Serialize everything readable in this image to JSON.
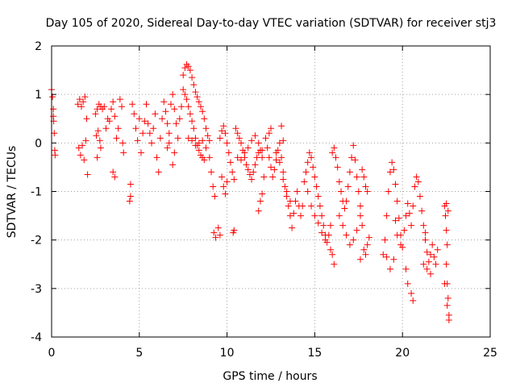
{
  "chart_data": {
    "type": "scatter",
    "title": "Day 105 of 2020, Sidereal Day-to-day VTEC variation (SDTVAR) for receiver stj3",
    "xlabel": "GPS time / hours",
    "ylabel": "SDTVAR / TECUs",
    "xlim": [
      0,
      25
    ],
    "ylim": [
      -4,
      2
    ],
    "xticks": [
      0,
      5,
      10,
      15,
      20,
      25
    ],
    "yticks": [
      -4,
      -3,
      -2,
      -1,
      0,
      1,
      2
    ],
    "grid": true,
    "marker": "+",
    "series": [
      {
        "name": "SDTVAR",
        "color": "#ff0000",
        "points": [
          [
            0.0,
            1.1
          ],
          [
            0.05,
            0.95
          ],
          [
            0.1,
            0.7
          ],
          [
            0.12,
            0.45
          ],
          [
            0.15,
            0.2
          ],
          [
            0.18,
            -0.15
          ],
          [
            0.2,
            -0.25
          ],
          [
            0.1,
            0.55
          ],
          [
            1.5,
            0.8
          ],
          [
            1.6,
            0.9
          ],
          [
            1.7,
            0.75
          ],
          [
            1.8,
            0.85
          ],
          [
            1.9,
            0.95
          ],
          [
            1.55,
            -0.1
          ],
          [
            1.65,
            -0.25
          ],
          [
            1.75,
            -0.05
          ],
          [
            1.85,
            -0.35
          ],
          [
            1.95,
            0.05
          ],
          [
            2.0,
            0.5
          ],
          [
            2.05,
            -0.65
          ],
          [
            2.5,
            0.6
          ],
          [
            2.6,
            0.7
          ],
          [
            2.7,
            0.8
          ],
          [
            2.8,
            0.75
          ],
          [
            2.9,
            0.7
          ],
          [
            2.55,
            0.15
          ],
          [
            2.65,
            0.25
          ],
          [
            2.75,
            0.05
          ],
          [
            2.6,
            -0.3
          ],
          [
            2.8,
            -0.1
          ],
          [
            3.0,
            0.75
          ],
          [
            3.1,
            0.3
          ],
          [
            3.2,
            0.5
          ],
          [
            3.3,
            0.45
          ],
          [
            3.4,
            0.7
          ],
          [
            3.5,
            0.85
          ],
          [
            3.6,
            0.55
          ],
          [
            3.7,
            0.1
          ],
          [
            3.8,
            0.3
          ],
          [
            3.9,
            0.9
          ],
          [
            4.0,
            0.75
          ],
          [
            4.05,
            0.0
          ],
          [
            4.1,
            -0.2
          ],
          [
            3.5,
            -0.6
          ],
          [
            3.6,
            -0.7
          ],
          [
            4.5,
            -1.1
          ],
          [
            4.45,
            -1.2
          ],
          [
            4.5,
            -0.85
          ],
          [
            4.6,
            0.8
          ],
          [
            4.7,
            0.6
          ],
          [
            4.8,
            0.3
          ],
          [
            4.9,
            0.05
          ],
          [
            5.0,
            0.5
          ],
          [
            5.1,
            -0.2
          ],
          [
            5.2,
            0.2
          ],
          [
            5.3,
            0.45
          ],
          [
            5.4,
            0.8
          ],
          [
            5.5,
            0.4
          ],
          [
            5.6,
            0.2
          ],
          [
            5.7,
            0.0
          ],
          [
            5.8,
            0.3
          ],
          [
            5.9,
            0.6
          ],
          [
            6.0,
            -0.3
          ],
          [
            6.1,
            -0.6
          ],
          [
            6.2,
            0.1
          ],
          [
            6.3,
            0.5
          ],
          [
            6.4,
            0.85
          ],
          [
            6.5,
            0.65
          ],
          [
            6.6,
            0.4
          ],
          [
            6.7,
            0.2
          ],
          [
            6.8,
            0.8
          ],
          [
            6.9,
            1.0
          ],
          [
            7.0,
            0.7
          ],
          [
            7.1,
            0.4
          ],
          [
            7.2,
            0.1
          ],
          [
            7.3,
            0.5
          ],
          [
            7.4,
            0.75
          ],
          [
            6.9,
            -0.45
          ],
          [
            7.0,
            -0.2
          ],
          [
            6.6,
            -0.1
          ],
          [
            6.7,
            0.0
          ],
          [
            7.5,
            1.4
          ],
          [
            7.6,
            1.55
          ],
          [
            7.7,
            1.62
          ],
          [
            7.8,
            1.58
          ],
          [
            7.9,
            1.5
          ],
          [
            8.0,
            1.35
          ],
          [
            8.1,
            1.2
          ],
          [
            8.2,
            1.05
          ],
          [
            8.3,
            0.95
          ],
          [
            8.4,
            0.85
          ],
          [
            8.5,
            0.75
          ],
          [
            8.6,
            0.65
          ],
          [
            8.7,
            0.5
          ],
          [
            8.8,
            0.3
          ],
          [
            8.9,
            0.15
          ],
          [
            9.0,
            0.05
          ],
          [
            7.5,
            1.1
          ],
          [
            7.6,
            1.0
          ],
          [
            7.7,
            0.9
          ],
          [
            7.8,
            0.75
          ],
          [
            7.9,
            0.6
          ],
          [
            8.0,
            0.45
          ],
          [
            8.1,
            0.3
          ],
          [
            8.2,
            0.1
          ],
          [
            8.3,
            -0.05
          ],
          [
            8.4,
            -0.15
          ],
          [
            8.5,
            -0.25
          ],
          [
            8.6,
            -0.3
          ],
          [
            8.7,
            -0.35
          ],
          [
            7.8,
            0.1
          ],
          [
            8.0,
            0.05
          ],
          [
            8.2,
            -0.05
          ],
          [
            8.4,
            0.0
          ],
          [
            8.6,
            0.05
          ],
          [
            8.8,
            -0.1
          ],
          [
            9.0,
            -0.3
          ],
          [
            9.1,
            -0.6
          ],
          [
            9.2,
            -0.9
          ],
          [
            9.3,
            -1.1
          ],
          [
            9.25,
            -1.85
          ],
          [
            9.35,
            -1.95
          ],
          [
            9.5,
            -1.75
          ],
          [
            9.6,
            -1.9
          ],
          [
            9.6,
            0.1
          ],
          [
            9.7,
            0.25
          ],
          [
            9.8,
            0.35
          ],
          [
            9.9,
            0.2
          ],
          [
            10.0,
            0.0
          ],
          [
            10.1,
            -0.2
          ],
          [
            10.2,
            -0.4
          ],
          [
            10.3,
            -0.6
          ],
          [
            10.4,
            -0.75
          ],
          [
            9.7,
            -0.7
          ],
          [
            9.8,
            -0.9
          ],
          [
            9.9,
            -1.05
          ],
          [
            10.0,
            -0.8
          ],
          [
            10.35,
            -1.85
          ],
          [
            10.4,
            -1.8
          ],
          [
            10.5,
            0.3
          ],
          [
            10.6,
            0.2
          ],
          [
            10.7,
            0.1
          ],
          [
            10.8,
            0.0
          ],
          [
            10.9,
            -0.15
          ],
          [
            11.0,
            -0.3
          ],
          [
            11.1,
            -0.45
          ],
          [
            11.2,
            -0.55
          ],
          [
            11.3,
            -0.65
          ],
          [
            11.4,
            -0.75
          ],
          [
            11.5,
            -0.6
          ],
          [
            11.6,
            -0.45
          ],
          [
            11.7,
            -0.3
          ],
          [
            11.8,
            -0.2
          ],
          [
            11.9,
            -0.15
          ],
          [
            12.0,
            -0.3
          ],
          [
            12.1,
            -0.7
          ],
          [
            12.0,
            -1.05
          ],
          [
            11.9,
            -1.2
          ],
          [
            11.8,
            -1.4
          ],
          [
            10.6,
            -0.3
          ],
          [
            10.8,
            -0.35
          ],
          [
            11.0,
            -0.2
          ],
          [
            11.2,
            -0.1
          ],
          [
            11.4,
            0.05
          ],
          [
            11.6,
            0.15
          ],
          [
            11.8,
            0.0
          ],
          [
            12.0,
            -0.15
          ],
          [
            12.2,
            0.1
          ],
          [
            12.3,
            -0.1
          ],
          [
            12.4,
            -0.3
          ],
          [
            12.5,
            -0.5
          ],
          [
            12.6,
            -0.7
          ],
          [
            12.7,
            -0.55
          ],
          [
            12.8,
            -0.35
          ],
          [
            12.9,
            -0.15
          ],
          [
            13.0,
            0.0
          ],
          [
            13.1,
            -0.3
          ],
          [
            13.2,
            -0.6
          ],
          [
            13.3,
            -0.9
          ],
          [
            13.4,
            -1.1
          ],
          [
            13.5,
            -1.3
          ],
          [
            13.6,
            -1.5
          ],
          [
            13.7,
            -1.75
          ],
          [
            12.4,
            0.2
          ],
          [
            12.5,
            0.3
          ],
          [
            12.8,
            -0.2
          ],
          [
            13.0,
            -0.4
          ],
          [
            13.2,
            -0.75
          ],
          [
            13.4,
            -1.0
          ],
          [
            13.6,
            -1.2
          ],
          [
            13.8,
            -1.45
          ],
          [
            13.9,
            -1.2
          ],
          [
            14.0,
            -1.0
          ],
          [
            14.1,
            -1.3
          ],
          [
            14.2,
            -1.5
          ],
          [
            14.3,
            -1.3
          ],
          [
            13.1,
            0.35
          ],
          [
            13.2,
            0.05
          ],
          [
            14.4,
            -0.8
          ],
          [
            14.5,
            -0.6
          ],
          [
            14.6,
            -0.4
          ],
          [
            14.7,
            -0.2
          ],
          [
            14.8,
            -0.3
          ],
          [
            14.9,
            -0.5
          ],
          [
            15.0,
            -0.7
          ],
          [
            15.1,
            -0.9
          ],
          [
            15.2,
            -1.1
          ],
          [
            15.3,
            -1.3
          ],
          [
            15.4,
            -1.5
          ],
          [
            15.5,
            -1.7
          ],
          [
            15.6,
            -1.9
          ],
          [
            15.7,
            -2.05
          ],
          [
            15.8,
            -1.9
          ],
          [
            15.9,
            -1.7
          ],
          [
            14.6,
            -1.0
          ],
          [
            14.8,
            -1.3
          ],
          [
            15.0,
            -1.5
          ],
          [
            15.2,
            -1.65
          ],
          [
            15.4,
            -1.85
          ],
          [
            15.6,
            -2.0
          ],
          [
            15.9,
            -2.2
          ],
          [
            16.0,
            -2.3
          ],
          [
            16.1,
            -2.5
          ],
          [
            16.0,
            -0.2
          ],
          [
            16.1,
            -0.1
          ],
          [
            16.2,
            -0.3
          ],
          [
            16.3,
            -0.5
          ],
          [
            16.4,
            -0.8
          ],
          [
            16.5,
            -1.0
          ],
          [
            16.6,
            -1.2
          ],
          [
            16.7,
            -1.35
          ],
          [
            16.8,
            -1.2
          ],
          [
            16.9,
            -0.9
          ],
          [
            17.0,
            -0.6
          ],
          [
            17.1,
            -0.3
          ],
          [
            17.2,
            -0.05
          ],
          [
            17.3,
            -0.35
          ],
          [
            17.4,
            -0.7
          ],
          [
            17.5,
            -1.0
          ],
          [
            17.6,
            -1.3
          ],
          [
            16.4,
            -1.5
          ],
          [
            16.6,
            -1.7
          ],
          [
            16.8,
            -1.9
          ],
          [
            17.0,
            -2.1
          ],
          [
            17.2,
            -2.0
          ],
          [
            17.4,
            -1.8
          ],
          [
            17.6,
            -1.5
          ],
          [
            17.7,
            -1.7
          ],
          [
            17.7,
            -0.55
          ],
          [
            17.8,
            -0.7
          ],
          [
            17.9,
            -0.9
          ],
          [
            18.0,
            -1.0
          ],
          [
            17.8,
            -2.2
          ],
          [
            17.9,
            -2.3
          ],
          [
            18.0,
            -2.1
          ],
          [
            18.1,
            -1.95
          ],
          [
            17.6,
            -2.4
          ],
          [
            18.9,
            -2.3
          ],
          [
            19.0,
            -2.0
          ],
          [
            19.1,
            -1.5
          ],
          [
            19.2,
            -1.0
          ],
          [
            19.3,
            -0.6
          ],
          [
            19.4,
            -0.4
          ],
          [
            19.5,
            -0.55
          ],
          [
            19.6,
            -0.85
          ],
          [
            19.7,
            -1.2
          ],
          [
            19.8,
            -1.55
          ],
          [
            19.9,
            -1.9
          ],
          [
            20.0,
            -2.15
          ],
          [
            19.1,
            -2.35
          ],
          [
            19.3,
            -2.6
          ],
          [
            19.5,
            -2.4
          ],
          [
            19.6,
            -1.6
          ],
          [
            19.7,
            -1.9
          ],
          [
            19.9,
            -2.1
          ],
          [
            20.1,
            -1.8
          ],
          [
            20.2,
            -1.5
          ],
          [
            20.3,
            -1.25
          ],
          [
            20.4,
            -1.45
          ],
          [
            20.5,
            -1.7
          ],
          [
            20.6,
            -1.3
          ],
          [
            20.7,
            -0.9
          ],
          [
            20.8,
            -0.7
          ],
          [
            20.9,
            -0.8
          ],
          [
            21.0,
            -1.1
          ],
          [
            20.2,
            -2.6
          ],
          [
            20.3,
            -2.9
          ],
          [
            20.5,
            -3.1
          ],
          [
            20.6,
            -3.25
          ],
          [
            21.1,
            -1.4
          ],
          [
            21.2,
            -1.7
          ],
          [
            21.3,
            -2.0
          ],
          [
            21.4,
            -2.25
          ],
          [
            21.5,
            -2.45
          ],
          [
            21.6,
            -2.3
          ],
          [
            21.7,
            -2.1
          ],
          [
            21.8,
            -2.35
          ],
          [
            21.9,
            -2.5
          ],
          [
            22.0,
            -2.2
          ],
          [
            21.2,
            -2.5
          ],
          [
            21.4,
            -2.6
          ],
          [
            21.6,
            -2.7
          ],
          [
            21.3,
            -1.85
          ],
          [
            22.4,
            -1.3
          ],
          [
            22.45,
            -1.5
          ],
          [
            22.5,
            -1.8
          ],
          [
            22.55,
            -2.1
          ],
          [
            22.5,
            -2.5
          ],
          [
            22.55,
            -2.9
          ],
          [
            22.6,
            -3.2
          ],
          [
            22.65,
            -3.55
          ],
          [
            22.5,
            -1.25
          ],
          [
            22.6,
            -1.4
          ],
          [
            22.4,
            -2.9
          ],
          [
            22.55,
            -3.35
          ],
          [
            22.65,
            -3.65
          ]
        ]
      }
    ]
  }
}
